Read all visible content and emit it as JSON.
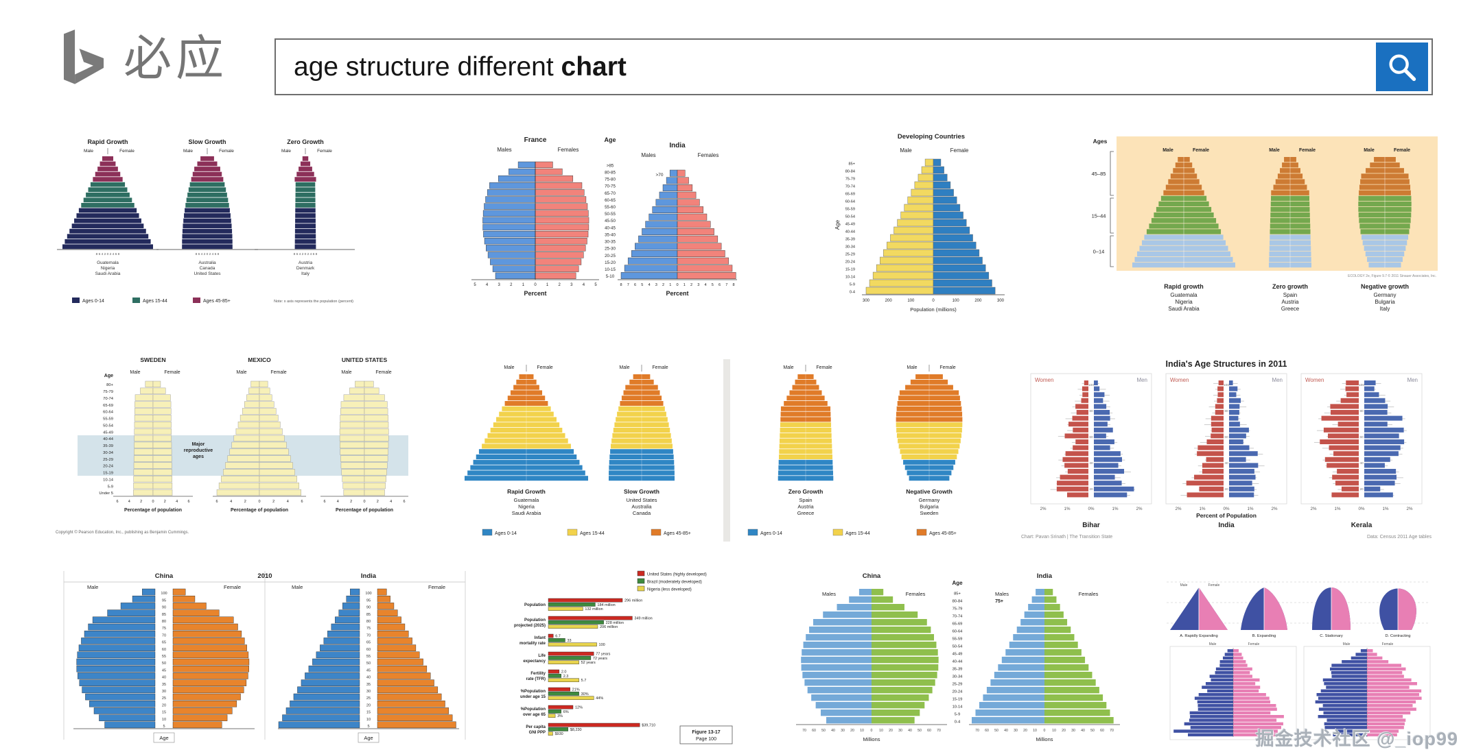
{
  "header": {
    "logo_text": "必应",
    "query_regular": "age structure different ",
    "query_bold": "chart",
    "button_color": "#1a70c0",
    "search_icon": "magnifier"
  },
  "watermark": "掘金技术社区 @_iop99",
  "tiles": {
    "t1": {
      "titles": [
        "Rapid Growth",
        "Slow Growth",
        "Zero Growth"
      ],
      "male": "Male",
      "female": "Female",
      "xticks": "8 6 4 2 0 2 4 6 8",
      "countries": [
        [
          "Guatemala",
          "Nigeria",
          "Saudi Arabia"
        ],
        [
          "Australia",
          "Canada",
          "United States"
        ],
        [
          "Austria",
          "Denmark",
          "Italy"
        ]
      ],
      "legend": [
        {
          "label": "Ages 0-14",
          "color": "#232a5c"
        },
        {
          "label": "Ages 15-44",
          "color": "#2e6e62"
        },
        {
          "label": "Ages 45-85+",
          "color": "#8c3058"
        }
      ],
      "note": "Note: x axis represents the population (percent)"
    },
    "t2": {
      "left_title": "France",
      "right_title": "India",
      "age_header": "Age",
      "ages": [
        ">85",
        "80-85",
        "75-80",
        "70-75",
        "65-70",
        "60-65",
        "55-60",
        "50-55",
        "45-50",
        "40-45",
        "35-40",
        "30-35",
        "25-30",
        "20-25",
        "15-20",
        "10-15",
        "5-10"
      ],
      "males": "Males",
      "females": "Females",
      "india_top_age": ">70",
      "xlabel": "Percent",
      "left_ticks": [
        "5",
        "4",
        "3",
        "2",
        "1",
        "0",
        "1",
        "2",
        "3",
        "4",
        "5"
      ],
      "right_ticks": [
        "8",
        "7",
        "6",
        "5",
        "4",
        "3",
        "2",
        "1",
        "0",
        "1",
        "2",
        "3",
        "4",
        "5",
        "6",
        "7",
        "8"
      ],
      "male_color": "#5e97dd",
      "female_color": "#f2837b"
    },
    "t3": {
      "title": "Developing Countries",
      "male": "Male",
      "female": "Female",
      "ylabel": "Age",
      "ages": [
        "85+",
        "80-84",
        "75-79",
        "70-74",
        "65-69",
        "60-64",
        "55-59",
        "50-54",
        "45-49",
        "40-44",
        "35-39",
        "30-34",
        "25-29",
        "20-24",
        "15-19",
        "10-14",
        "5-9",
        "0-4"
      ],
      "xticks": [
        "300",
        "200",
        "100",
        "0",
        "100",
        "200",
        "300"
      ],
      "xlabel": "Population (millions)",
      "male_color": "#f2d960",
      "female_color": "#2f7fc1"
    },
    "t4": {
      "ages_label": "Ages",
      "age_brackets": [
        "45–85",
        "15–44",
        "0–14"
      ],
      "male": "Male",
      "female": "Female",
      "groups": [
        {
          "title": "Rapid growth",
          "countries": [
            "Guatemala",
            "Nigeria",
            "Saudi Arabia"
          ]
        },
        {
          "title": "Zero growth",
          "countries": [
            "Spain",
            "Austria",
            "Greece"
          ]
        },
        {
          "title": "Negative growth",
          "countries": [
            "Germany",
            "Bulgaria",
            "Italy"
          ]
        }
      ],
      "credit": "ECOLOGY 2e, Figure 9.7   © 2011 Sinauer Associates, Inc.",
      "band_colors": [
        "#a9c7e6",
        "#74a84e",
        "#cd7b33"
      ],
      "panel_bg": "#fce3b8"
    },
    "t5": {
      "titles": [
        "SWEDEN",
        "MEXICO",
        "UNITED STATES"
      ],
      "age_label": "Age",
      "ages": [
        "80+",
        "75-79",
        "70-74",
        "65-69",
        "60-64",
        "55-59",
        "50-54",
        "45-49",
        "40-44",
        "35-39",
        "30-34",
        "25-29",
        "20-24",
        "15-19",
        "10-14",
        "5-9",
        "Under 5"
      ],
      "male": "Male",
      "female": "Female",
      "band_label": [
        "Major",
        "reproductive",
        "ages"
      ],
      "xticks": [
        "6",
        "4",
        "2",
        "0",
        "2",
        "4",
        "6"
      ],
      "xlabel": "Percentage of population",
      "copyright": "Copyright © Pearson Education, Inc., publishing as Benjamin Cummings.",
      "bar_color": "#f7f0b8",
      "band_color": "#cfe0e8"
    },
    "t6": {
      "male": "Male",
      "female": "Female",
      "groups": [
        {
          "title": "Rapid Growth",
          "countries": [
            "Guatemala",
            "Nigeria",
            "Saudi Arabia"
          ]
        },
        {
          "title": "Slow Growth",
          "countries": [
            "United States",
            "Australia",
            "Canada"
          ]
        }
      ],
      "band_fracs": [
        0.28,
        0.4,
        0.32
      ],
      "legend": [
        {
          "label": "Ages 0-14",
          "color": "#2f86c4"
        },
        {
          "label": "Ages 15-44",
          "color": "#f2d24b"
        },
        {
          "label": "Ages 45-85+",
          "color": "#e07b28"
        }
      ]
    },
    "t7": {
      "male": "Male",
      "female": "Female",
      "groups": [
        {
          "title": "Zero Growth",
          "countries": [
            "Spain",
            "Austria",
            "Greece"
          ]
        },
        {
          "title": "Negative Growth",
          "countries": [
            "Germany",
            "Bulgaria",
            "Sweden"
          ]
        }
      ],
      "band_fracs": [
        0.22,
        0.34,
        0.44
      ],
      "legend": [
        {
          "label": "Ages 0-14",
          "color": "#2f86c4"
        },
        {
          "label": "Ages 15-44",
          "color": "#f2d24b"
        },
        {
          "label": "Ages 45-85+",
          "color": "#e07b28"
        }
      ]
    },
    "t8": {
      "title": "India's Age Structures in 2011",
      "women": "Women",
      "men": "Men",
      "panels": [
        "Bihar",
        "India",
        "Kerala"
      ],
      "yticks": [
        "100",
        "80",
        "60",
        "40",
        "20"
      ],
      "xticks": [
        "2%",
        "1%",
        "0%",
        "1%",
        "2%"
      ],
      "xlabel": "Percent of Population",
      "credit_left": "Chart: Pavan Srinath | The Transition State",
      "credit_right": "Data: Census 2011 Age tables",
      "women_color": "#c4534b",
      "men_color": "#4a69b0"
    },
    "t9": {
      "left_title": "China",
      "year": "2010",
      "right_title": "India",
      "male": "Male",
      "female": "Female",
      "ages": [
        "100",
        "95",
        "90",
        "85",
        "80",
        "75",
        "70",
        "65",
        "60",
        "55",
        "50",
        "45",
        "40",
        "35",
        "30",
        "25",
        "20",
        "15",
        "10",
        "5"
      ],
      "age_label": "Age",
      "male_color": "#3d85c8",
      "female_color": "#e8842c"
    },
    "t10": {
      "legend": [
        {
          "label": "United States (highly developed)",
          "color": "#cc2a22"
        },
        {
          "label": "Brazil (moderately developed)",
          "color": "#3e8a3e"
        },
        {
          "label": "Nigeria (less developed)",
          "color": "#e8d44d"
        }
      ],
      "groups": [
        {
          "label": [
            "Population"
          ],
          "values": [
            "296 million",
            "184 million",
            "132 million"
          ],
          "lens": [
            150,
            95,
            70
          ]
        },
        {
          "label": [
            "Population",
            "projected (2025)"
          ],
          "values": [
            "349 million",
            "228 million",
            "206 million"
          ],
          "lens": [
            170,
            112,
            100
          ]
        },
        {
          "label": [
            "Infant",
            "mortality rate"
          ],
          "values": [
            "6.7",
            "33",
            "100"
          ],
          "lens": [
            10,
            34,
            98
          ]
        },
        {
          "label": [
            "Life",
            "expectancy"
          ],
          "values": [
            "77 years",
            "72 years",
            "52 years"
          ],
          "lens": [
            92,
            86,
            62
          ]
        },
        {
          "label": [
            "Fertility",
            "rate (TFR)"
          ],
          "values": [
            "2.0",
            "2.3",
            "5.7"
          ],
          "lens": [
            22,
            26,
            62
          ]
        },
        {
          "label": [
            "%Population",
            "under age 15"
          ],
          "values": [
            "21%",
            "30%",
            "44%"
          ],
          "lens": [
            44,
            62,
            92
          ]
        },
        {
          "label": [
            "%Population",
            "over age 65"
          ],
          "values": [
            "12%",
            "6%",
            "3%"
          ],
          "lens": [
            50,
            26,
            14
          ]
        },
        {
          "label": [
            "Per capita",
            "GNI PPP"
          ],
          "values": [
            "$39,710",
            "$8,230",
            "$930"
          ],
          "lens": [
            185,
            40,
            9
          ]
        }
      ],
      "caption": [
        "Figure 13-17",
        "Page 100"
      ]
    },
    "t11": {
      "left_title": "China",
      "right_title": "India",
      "age_header": "Age",
      "ages": [
        "85+",
        "80-84",
        "75-79",
        "70-74",
        "65-69",
        "60-64",
        "55-59",
        "50-54",
        "45-49",
        "40-44",
        "35-39",
        "30-34",
        "25-29",
        "20-24",
        "15-19",
        "10-14",
        "5-9",
        "0-4"
      ],
      "males": "Males",
      "females": "Females",
      "annotation": "75+",
      "xticks": [
        "70",
        "60",
        "50",
        "40",
        "30",
        "20",
        "10",
        "0",
        "10",
        "20",
        "30",
        "40",
        "50",
        "60",
        "70"
      ],
      "xlabel": "Millions",
      "male_color": "#74a9d8",
      "female_color": "#8fbf4d"
    },
    "t12": {
      "shapes": [
        {
          "label": "A. Rapidly Expanding"
        },
        {
          "label": "B. Expanding"
        },
        {
          "label": "C. Stationary"
        },
        {
          "label": "D. Contracting"
        }
      ],
      "male": "Male",
      "female": "Female",
      "male_color": "#3f51a3",
      "female_color": "#e87fb4"
    }
  }
}
